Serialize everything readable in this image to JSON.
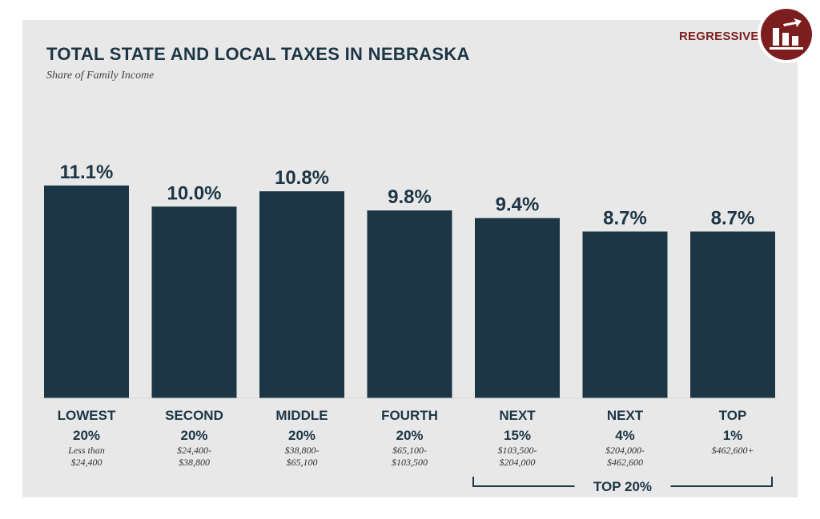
{
  "badge": {
    "label": "REGRESSIVE",
    "icon": "regressive-chart-icon",
    "color": "#7c1e1e"
  },
  "chart_data": {
    "type": "bar",
    "title": "TOTAL STATE AND LOCAL TAXES IN NEBRASKA",
    "subtitle": "Share of Family Income",
    "categories": [
      {
        "name": "LOWEST",
        "pct": "20%",
        "range": [
          "Less than",
          "$24,400"
        ]
      },
      {
        "name": "SECOND",
        "pct": "20%",
        "range": [
          "$24,400-",
          "$38,800"
        ]
      },
      {
        "name": "MIDDLE",
        "pct": "20%",
        "range": [
          "$38,800-",
          "$65,100"
        ]
      },
      {
        "name": "FOURTH",
        "pct": "20%",
        "range": [
          "$65,100-",
          "$103,500"
        ]
      },
      {
        "name": "NEXT",
        "pct": "15%",
        "range": [
          "$103,500-",
          "$204,000"
        ]
      },
      {
        "name": "NEXT",
        "pct": "4%",
        "range": [
          "$204,000-",
          "$462,600"
        ]
      },
      {
        "name": "TOP",
        "pct": "1%",
        "range": [
          "$462,600+"
        ]
      }
    ],
    "values": [
      11.1,
      10.0,
      10.8,
      9.8,
      9.4,
      8.7,
      8.7
    ],
    "value_labels": [
      "11.1%",
      "10.0%",
      "10.8%",
      "9.8%",
      "9.4%",
      "8.7%",
      "8.7%"
    ],
    "ylim": [
      0,
      11.1
    ],
    "grid": false,
    "bar_color": "#1c3645",
    "group_bracket": {
      "label": "TOP 20%",
      "from": 4,
      "to": 6
    }
  }
}
